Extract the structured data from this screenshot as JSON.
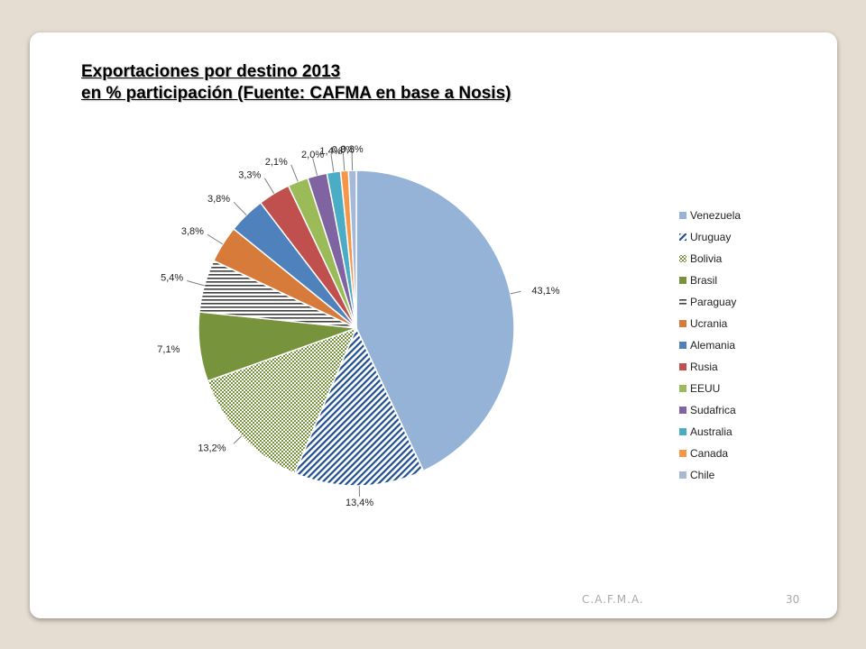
{
  "slide": {
    "title_line1": "Exportaciones por destino 2013",
    "title_line2": "en % participación (Fuente: CAFMA en base a Nosis)",
    "footer_org": "C.A.F.M.A.",
    "page_number": "30"
  },
  "chart_data": {
    "type": "pie",
    "title": "",
    "categories": [
      "Venezuela",
      "Uruguay",
      "Bolivia",
      "Brasil",
      "Paraguay",
      "Ucrania",
      "Alemania",
      "Rusia",
      "EEUU",
      "Sudafrica",
      "Australia",
      "Canada",
      "Chile"
    ],
    "values": [
      43.1,
      13.4,
      13.2,
      7.1,
      5.4,
      3.8,
      3.8,
      3.3,
      2.1,
      2.0,
      1.4,
      0.8,
      0.8
    ],
    "data_labels": [
      "43,1%",
      "13,4%",
      "13,2%",
      "7,1%",
      "5,4%",
      "3,8%",
      "3,8%",
      "3,3%",
      "2,1%",
      "2,0%",
      "1,4%",
      "0,8%",
      "0,8%"
    ],
    "colors": [
      "#95b3d7",
      "#4f81bd",
      "#9bbb59",
      "#77933c",
      "#7f7f7f",
      "#d77b3a",
      "#4f81bd",
      "#c0504d",
      "#9bbb59",
      "#8064a2",
      "#4bacc6",
      "#f79646",
      "#a6b9d9"
    ],
    "patterns": [
      "solid",
      "diagonal",
      "checker",
      "solid",
      "horizontal",
      "solid",
      "solid",
      "solid",
      "solid",
      "solid",
      "solid",
      "solid",
      "solid"
    ],
    "legend_position": "right"
  }
}
